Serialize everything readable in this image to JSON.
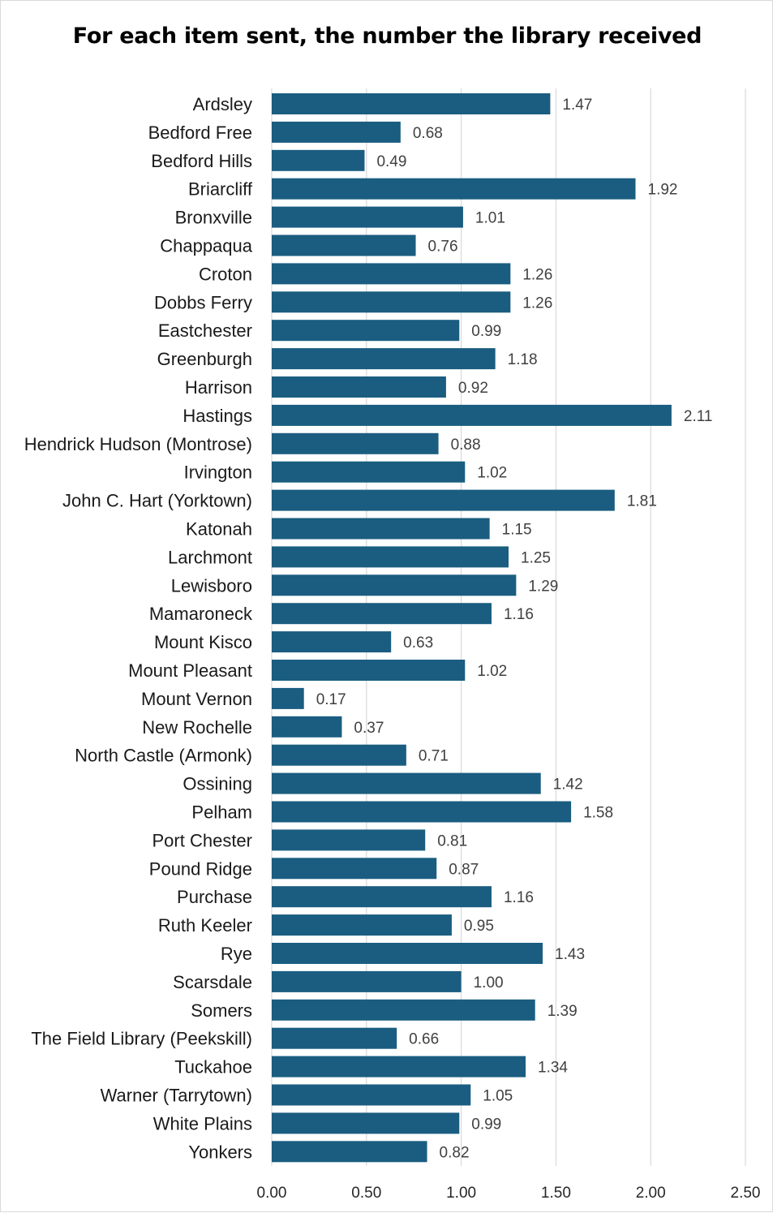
{
  "chart_data": {
    "type": "bar",
    "orientation": "horizontal",
    "title": "For each item sent, the number the library received",
    "xlabel": "",
    "ylabel": "",
    "xlim": [
      0,
      2.5
    ],
    "x_ticks": [
      "0.00",
      "0.50",
      "1.00",
      "1.50",
      "2.00",
      "2.50"
    ],
    "grid": "vertical",
    "legend": "none",
    "bar_color": "#1a5d80",
    "categories": [
      "Ardsley",
      "Bedford Free",
      "Bedford Hills",
      "Briarcliff",
      "Bronxville",
      "Chappaqua",
      "Croton",
      "Dobbs Ferry",
      "Eastchester",
      "Greenburgh",
      "Harrison",
      "Hastings",
      "Hendrick Hudson (Montrose)",
      "Irvington",
      "John C. Hart (Yorktown)",
      "Katonah",
      "Larchmont",
      "Lewisboro",
      "Mamaroneck",
      "Mount Kisco",
      "Mount Pleasant",
      "Mount Vernon",
      "New Rochelle",
      "North Castle (Armonk)",
      "Ossining",
      "Pelham",
      "Port Chester",
      "Pound Ridge",
      "Purchase",
      "Ruth Keeler",
      "Rye",
      "Scarsdale",
      "Somers",
      "The Field Library (Peekskill)",
      "Tuckahoe",
      "Warner (Tarrytown)",
      "White Plains",
      "Yonkers"
    ],
    "values": [
      1.47,
      0.68,
      0.49,
      1.92,
      1.01,
      0.76,
      1.26,
      1.26,
      0.99,
      1.18,
      0.92,
      2.11,
      0.88,
      1.02,
      1.81,
      1.15,
      1.25,
      1.29,
      1.16,
      0.63,
      1.02,
      0.17,
      0.37,
      0.71,
      1.42,
      1.58,
      0.81,
      0.87,
      1.16,
      0.95,
      1.43,
      1.0,
      1.39,
      0.66,
      1.34,
      1.05,
      0.99,
      0.82
    ],
    "value_labels": [
      "1.47",
      "0.68",
      "0.49",
      "1.92",
      "1.01",
      "0.76",
      "1.26",
      "1.26",
      "0.99",
      "1.18",
      "0.92",
      "2.11",
      "0.88",
      "1.02",
      "1.81",
      "1.15",
      "1.25",
      "1.29",
      "1.16",
      "0.63",
      "1.02",
      "0.17",
      "0.37",
      "0.71",
      "1.42",
      "1.58",
      "0.81",
      "0.87",
      "1.16",
      "0.95",
      "1.43",
      "1.00",
      "1.39",
      "0.66",
      "1.34",
      "1.05",
      "0.99",
      "0.82"
    ]
  }
}
